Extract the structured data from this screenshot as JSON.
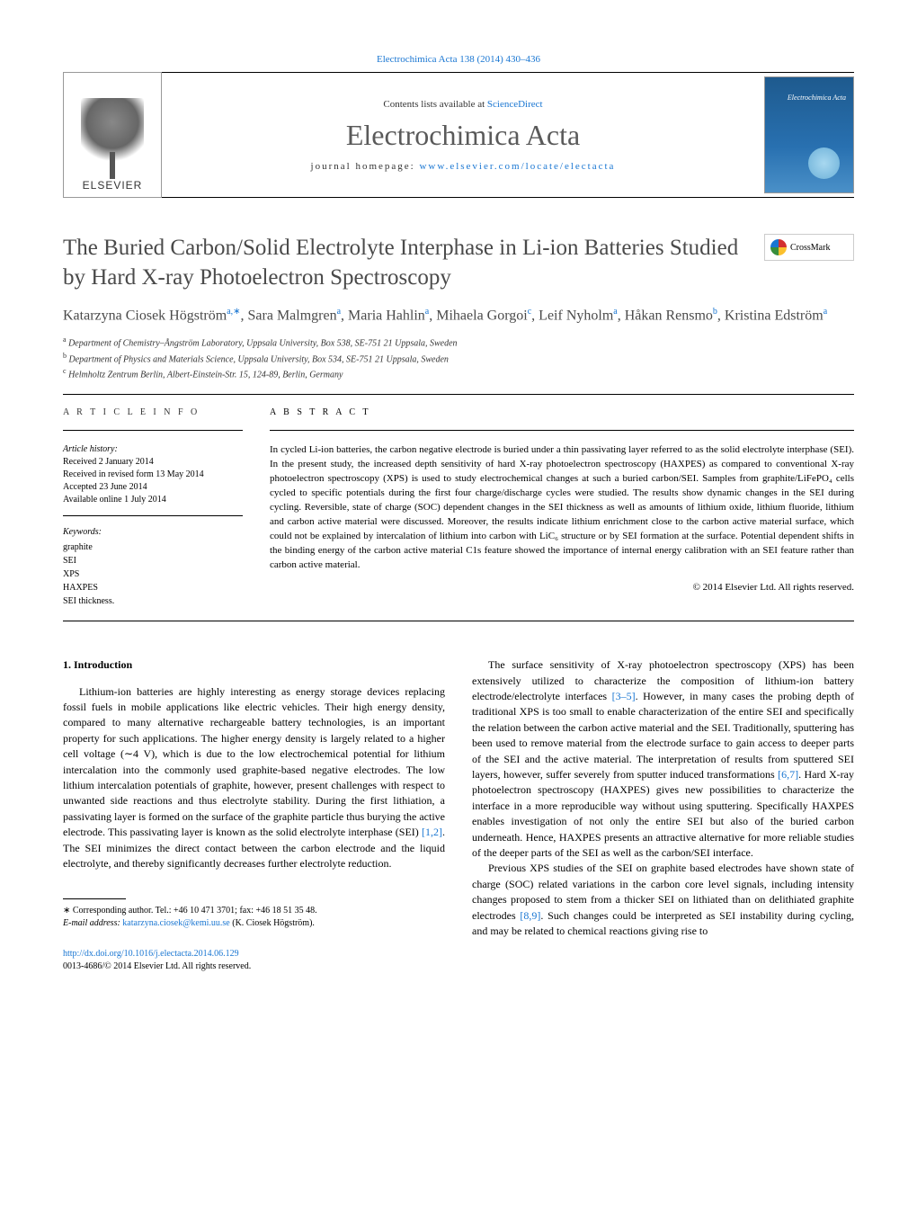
{
  "header": {
    "citation_link": "Electrochimica Acta 138 (2014) 430–436",
    "contents_prefix": "Contents lists available at ",
    "contents_link": "ScienceDirect",
    "journal_title": "Electrochimica Acta",
    "homepage_prefix": "journal homepage: ",
    "homepage_link": "www.elsevier.com/locate/electacta",
    "elsevier_text": "ELSEVIER",
    "cover_text": "Electrochimica Acta",
    "crossmark_label": "CrossMark"
  },
  "article": {
    "title": "The Buried Carbon/Solid Electrolyte Interphase in Li-ion Batteries Studied by Hard X-ray Photoelectron Spectroscopy",
    "authors_html": "Katarzyna Ciosek Högström<sup>a,∗</sup>, Sara Malmgren<sup>a</sup>, Maria Hahlin<sup>a</sup>, Mihaela Gorgoi<sup>c</sup>, Leif Nyholm<sup>a</sup>, Håkan Rensmo<sup>b</sup>, Kristina Edström<sup>a</sup>",
    "affiliations": [
      "<sup>a</sup> Department of Chemistry–Ångström Laboratory, Uppsala University, Box 538, SE-751 21 Uppsala, Sweden",
      "<sup>b</sup> Department of Physics and Materials Science, Uppsala University, Box 534, SE-751 21 Uppsala, Sweden",
      "<sup>c</sup> Helmholtz Zentrum Berlin, Albert-Einstein-Str. 15, 124-89, Berlin, Germany"
    ]
  },
  "info": {
    "heading": "A R T I C L E   I N F O",
    "history_label": "Article history:",
    "received": "Received 2 January 2014",
    "revised": "Received in revised form 13 May 2014",
    "accepted": "Accepted 23 June 2014",
    "online": "Available online 1 July 2014",
    "keywords_label": "Keywords:",
    "keywords": [
      "graphite",
      "SEI",
      "XPS",
      "HAXPES",
      "SEI thickness."
    ]
  },
  "abstract": {
    "heading": "A B S T R A C T",
    "text": "In cycled Li-ion batteries, the carbon negative electrode is buried under a thin passivating layer referred to as the solid electrolyte interphase (SEI). In the present study, the increased depth sensitivity of hard X-ray photoelectron spectroscopy (HAXPES) as compared to conventional X-ray photoelectron spectroscopy (XPS) is used to study electrochemical changes at such a buried carbon/SEI. Samples from graphite/LiFePO₄ cells cycled to specific potentials during the first four charge/discharge cycles were studied. The results show dynamic changes in the SEI during cycling. Reversible, state of charge (SOC) dependent changes in the SEI thickness as well as amounts of lithium oxide, lithium fluoride, lithium and carbon active material were discussed. Moreover, the results indicate lithium enrichment close to the carbon active material surface, which could not be explained by intercalation of lithium into carbon with LiC₆ structure or by SEI formation at the surface. Potential dependent shifts in the binding energy of the carbon active material C1s feature showed the importance of internal energy calibration with an SEI feature rather than carbon active material.",
    "copyright": "© 2014 Elsevier Ltd. All rights reserved."
  },
  "body": {
    "section_heading": "1. Introduction",
    "col1": [
      "Lithium-ion batteries are highly interesting as energy storage devices replacing fossil fuels in mobile applications like electric vehicles. Their high energy density, compared to many alternative rechargeable battery technologies, is an important property for such applications. The higher energy density is largely related to a higher cell voltage (∼4 V), which is due to the low electrochemical potential for lithium intercalation into the commonly used graphite-based negative electrodes. The low lithium intercalation potentials of graphite, however, present challenges with respect to unwanted side reactions and thus electrolyte stability. During the first lithiation, a passivating layer is formed on the surface of the graphite particle thus burying the active electrode. This passivating layer is known as the solid electrolyte interphase (SEI) <span class=\"ref-link\">[1,2]</span>. The SEI minimizes the direct contact between the carbon electrode and the liquid electrolyte, and thereby significantly decreases further electrolyte reduction."
    ],
    "col2": [
      "The surface sensitivity of X-ray photoelectron spectroscopy (XPS) has been extensively utilized to characterize the composition of lithium-ion battery electrode/electrolyte interfaces <span class=\"ref-link\">[3–5]</span>. However, in many cases the probing depth of traditional XPS is too small to enable characterization of the entire SEI and specifically the relation between the carbon active material and the SEI. Traditionally, sputtering has been used to remove material from the electrode surface to gain access to deeper parts of the SEI and the active material. The interpretation of results from sputtered SEI layers, however, suffer severely from sputter induced transformations <span class=\"ref-link\">[6,7]</span>. Hard X-ray photoelectron spectroscopy (HAXPES) gives new possibilities to characterize the interface in a more reproducible way without using sputtering. Specifically HAXPES enables investigation of not only the entire SEI but also of the buried carbon underneath. Hence, HAXPES presents an attractive alternative for more reliable studies of the deeper parts of the SEI as well as the carbon/SEI interface.",
      "Previous XPS studies of the SEI on graphite based electrodes have shown state of charge (SOC) related variations in the carbon core level signals, including intensity changes proposed to stem from a thicker SEI on lithiated than on delithiated graphite electrodes <span class=\"ref-link\">[8,9]</span>. Such changes could be interpreted as SEI instability during cycling, and may be related to chemical reactions giving rise to"
    ]
  },
  "footer": {
    "corresponding_prefix": "∗ Corresponding author. Tel.: +46 10 471 3701; fax: +46 18 51 35 48.",
    "email_label": "E-mail address: ",
    "email": "katarzyna.ciosek@kemi.uu.se",
    "email_suffix": " (K. Ciosek Högström).",
    "doi_link": "http://dx.doi.org/10.1016/j.electacta.2014.06.129",
    "issn_line": "0013-4686/© 2014 Elsevier Ltd. All rights reserved."
  },
  "colors": {
    "link": "#1976d2",
    "text": "#000000",
    "heading_gray": "#4a4a4a"
  }
}
